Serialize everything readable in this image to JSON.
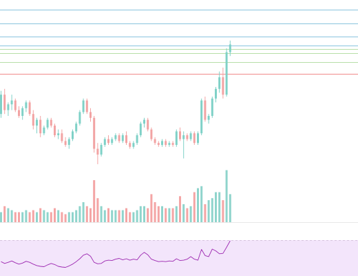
{
  "chart_data": {
    "type": "candlestick",
    "panels": [
      "price",
      "volume",
      "rsi"
    ],
    "colors": {
      "up": "#7fd1c7",
      "down": "#f2a3a3",
      "up_volume": "#8fd4cc",
      "down_volume": "#f4a5a5",
      "rsi_line": "#9c27b0",
      "rsi_band": "#f3e5fb",
      "resistance_line": "#89c4de",
      "target_line": "#b7dfa8",
      "stop_line": "#f08a8a",
      "divider": "#e8e8e8"
    },
    "horizontal_levels": [
      {
        "kind": "resistance",
        "value": 100
      },
      {
        "kind": "resistance",
        "value": 96.5
      },
      {
        "kind": "resistance",
        "value": 93.0
      },
      {
        "kind": "resistance",
        "value": 90.8
      },
      {
        "kind": "target",
        "value": 89.8
      },
      {
        "kind": "target",
        "value": 88.8
      },
      {
        "kind": "target",
        "value": 86.5
      },
      {
        "kind": "stop",
        "value": 83.4
      }
    ],
    "candles": [
      [
        73.0,
        79.0,
        72.0,
        78.0
      ],
      [
        78.0,
        79.5,
        73.0,
        74.0
      ],
      [
        74.0,
        76.0,
        72.5,
        75.5
      ],
      [
        75.5,
        78.0,
        74.0,
        76.5
      ],
      [
        76.5,
        77.0,
        73.5,
        74.0
      ],
      [
        74.0,
        75.0,
        72.0,
        72.5
      ],
      [
        72.5,
        75.0,
        71.5,
        74.5
      ],
      [
        74.5,
        76.5,
        73.5,
        76.0
      ],
      [
        76.0,
        76.5,
        72.5,
        73.0
      ],
      [
        73.0,
        74.0,
        69.0,
        70.0
      ],
      [
        70.0,
        72.0,
        68.0,
        71.5
      ],
      [
        71.5,
        72.5,
        67.0,
        68.0
      ],
      [
        68.0,
        70.0,
        67.5,
        69.5
      ],
      [
        69.5,
        72.0,
        69.0,
        71.5
      ],
      [
        71.5,
        72.0,
        69.5,
        70.0
      ],
      [
        70.0,
        70.5,
        67.0,
        67.5
      ],
      [
        67.5,
        69.0,
        66.5,
        68.0
      ],
      [
        68.0,
        69.0,
        65.5,
        66.0
      ],
      [
        66.0,
        67.0,
        64.5,
        65.0
      ],
      [
        65.0,
        67.0,
        64.0,
        66.5
      ],
      [
        66.5,
        69.0,
        66.0,
        68.5
      ],
      [
        68.5,
        71.0,
        68.0,
        70.5
      ],
      [
        70.5,
        74.0,
        70.0,
        73.5
      ],
      [
        73.5,
        77.0,
        73.0,
        76.5
      ],
      [
        76.5,
        77.0,
        73.0,
        73.5
      ],
      [
        73.5,
        74.5,
        71.0,
        72.0
      ],
      [
        72.0,
        72.5,
        63.0,
        64.0
      ],
      [
        64.0,
        65.5,
        60.0,
        62.5
      ],
      [
        62.5,
        65.5,
        62.0,
        65.0
      ],
      [
        65.0,
        67.0,
        64.5,
        66.5
      ],
      [
        66.5,
        67.5,
        65.0,
        65.5
      ],
      [
        65.5,
        67.0,
        65.0,
        66.5
      ],
      [
        66.5,
        68.0,
        66.0,
        67.5
      ],
      [
        67.5,
        68.0,
        65.5,
        66.0
      ],
      [
        66.0,
        68.0,
        65.5,
        67.5
      ],
      [
        67.5,
        68.5,
        65.0,
        65.5
      ],
      [
        65.5,
        66.0,
        64.0,
        64.5
      ],
      [
        64.5,
        66.0,
        64.0,
        65.5
      ],
      [
        65.5,
        68.0,
        65.0,
        67.5
      ],
      [
        67.5,
        71.0,
        67.0,
        70.5
      ],
      [
        70.5,
        72.0,
        69.5,
        71.5
      ],
      [
        71.5,
        72.0,
        68.5,
        69.0
      ],
      [
        69.0,
        69.5,
        66.0,
        66.5
      ],
      [
        66.5,
        67.0,
        65.0,
        65.5
      ],
      [
        65.5,
        66.0,
        64.5,
        65.0
      ],
      [
        65.0,
        66.5,
        64.5,
        66.0
      ],
      [
        66.0,
        66.5,
        64.5,
        65.0
      ],
      [
        65.0,
        66.0,
        64.5,
        65.5
      ],
      [
        65.5,
        66.0,
        64.5,
        65.0
      ],
      [
        65.0,
        69.0,
        64.5,
        68.5
      ],
      [
        68.5,
        69.5,
        66.0,
        66.5
      ],
      [
        66.5,
        68.5,
        61.5,
        67.5
      ],
      [
        67.5,
        68.0,
        66.0,
        66.5
      ],
      [
        66.5,
        68.5,
        66.0,
        68.0
      ],
      [
        68.0,
        68.5,
        65.0,
        65.5
      ],
      [
        65.5,
        68.5,
        65.0,
        68.0
      ],
      [
        68.0,
        77.0,
        67.5,
        76.5
      ],
      [
        76.5,
        77.5,
        71.0,
        71.5
      ],
      [
        71.5,
        73.0,
        70.5,
        72.5
      ],
      [
        72.5,
        77.5,
        72.0,
        77.0
      ],
      [
        77.0,
        80.0,
        76.0,
        79.5
      ],
      [
        79.5,
        84.0,
        78.5,
        82.5
      ],
      [
        82.5,
        85.0,
        77.0,
        78.0
      ],
      [
        78.0,
        90.0,
        77.5,
        89.0
      ],
      [
        89.0,
        92.0,
        88.0,
        91.0
      ]
    ],
    "volume": [
      5,
      8,
      7,
      6,
      5,
      5,
      5,
      6,
      5,
      6,
      5,
      7,
      6,
      5,
      5,
      7,
      6,
      5,
      4,
      5,
      5,
      6,
      8,
      10,
      8,
      7,
      21,
      12,
      8,
      6,
      7,
      6,
      6,
      6,
      6,
      7,
      5,
      5,
      6,
      8,
      8,
      7,
      14,
      10,
      8,
      8,
      7,
      7,
      7,
      8,
      13,
      9,
      7,
      8,
      15,
      17,
      18,
      9,
      11,
      12,
      15,
      15,
      11,
      26,
      14
    ],
    "rsi": [
      40,
      35,
      38,
      42,
      37,
      33,
      36,
      41,
      38,
      33,
      29,
      27,
      26,
      31,
      35,
      32,
      27,
      25,
      24,
      28,
      33,
      40,
      48,
      58,
      62,
      55,
      38,
      34,
      35,
      42,
      44,
      43,
      47,
      49,
      45,
      48,
      44,
      47,
      45,
      58,
      66,
      59,
      47,
      43,
      40,
      41,
      40,
      42,
      41,
      48,
      43,
      44,
      47,
      54,
      47,
      44,
      74,
      57,
      54,
      75,
      70,
      62,
      63,
      80,
      98
    ],
    "rsi_band": [
      30,
      70
    ]
  }
}
